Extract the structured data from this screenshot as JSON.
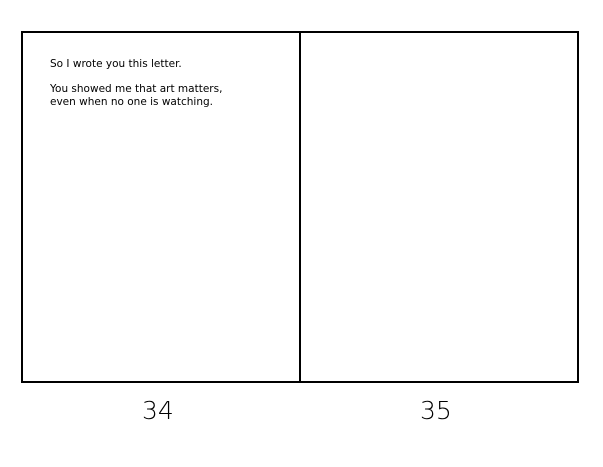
{
  "pages": [
    {
      "number": "34",
      "paragraphs": [
        "So I wrote you this letter.",
        "You showed me that art matters,",
        "even when no one is watching."
      ]
    },
    {
      "number": "35",
      "paragraphs": []
    }
  ]
}
